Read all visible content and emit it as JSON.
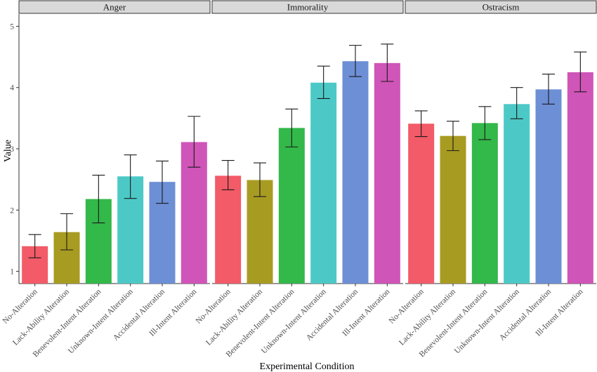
{
  "chart_data": {
    "type": "bar",
    "xlabel": "Experimental Condition",
    "ylabel": "Value",
    "ylim": [
      0.8,
      5.2
    ],
    "yticks": [
      1,
      2,
      3,
      4,
      5
    ],
    "categories": [
      "No-Alteration",
      "Lack-Ability Alteration",
      "Benevolent-Intent Alteration",
      "Unknown-Intent Alteration",
      "Accidental Alteration",
      "Ill-Intent Alteration"
    ],
    "colors": [
      "#f25b67",
      "#a89b22",
      "#33b84a",
      "#4cc9c6",
      "#6d8fd6",
      "#cf55b8"
    ],
    "panels": [
      {
        "title": "Anger",
        "values": [
          1.41,
          1.64,
          2.18,
          2.55,
          2.46,
          3.11
        ],
        "error_low": [
          1.22,
          1.35,
          1.79,
          2.19,
          2.11,
          2.7
        ],
        "error_high": [
          1.6,
          1.94,
          2.57,
          2.9,
          2.8,
          3.53
        ]
      },
      {
        "title": "Immorality",
        "values": [
          2.56,
          2.49,
          3.34,
          4.08,
          4.43,
          4.4
        ],
        "error_low": [
          2.33,
          2.22,
          3.03,
          3.82,
          4.18,
          4.1
        ],
        "error_high": [
          2.81,
          2.77,
          3.65,
          4.35,
          4.69,
          4.71
        ]
      },
      {
        "title": "Ostracism",
        "values": [
          3.41,
          3.21,
          3.42,
          3.73,
          3.97,
          4.25
        ],
        "error_low": [
          3.2,
          2.97,
          3.15,
          3.49,
          3.73,
          3.93
        ],
        "error_high": [
          3.62,
          3.45,
          3.69,
          4.0,
          4.22,
          4.58
        ]
      }
    ],
    "grid": false,
    "legend": "none"
  }
}
